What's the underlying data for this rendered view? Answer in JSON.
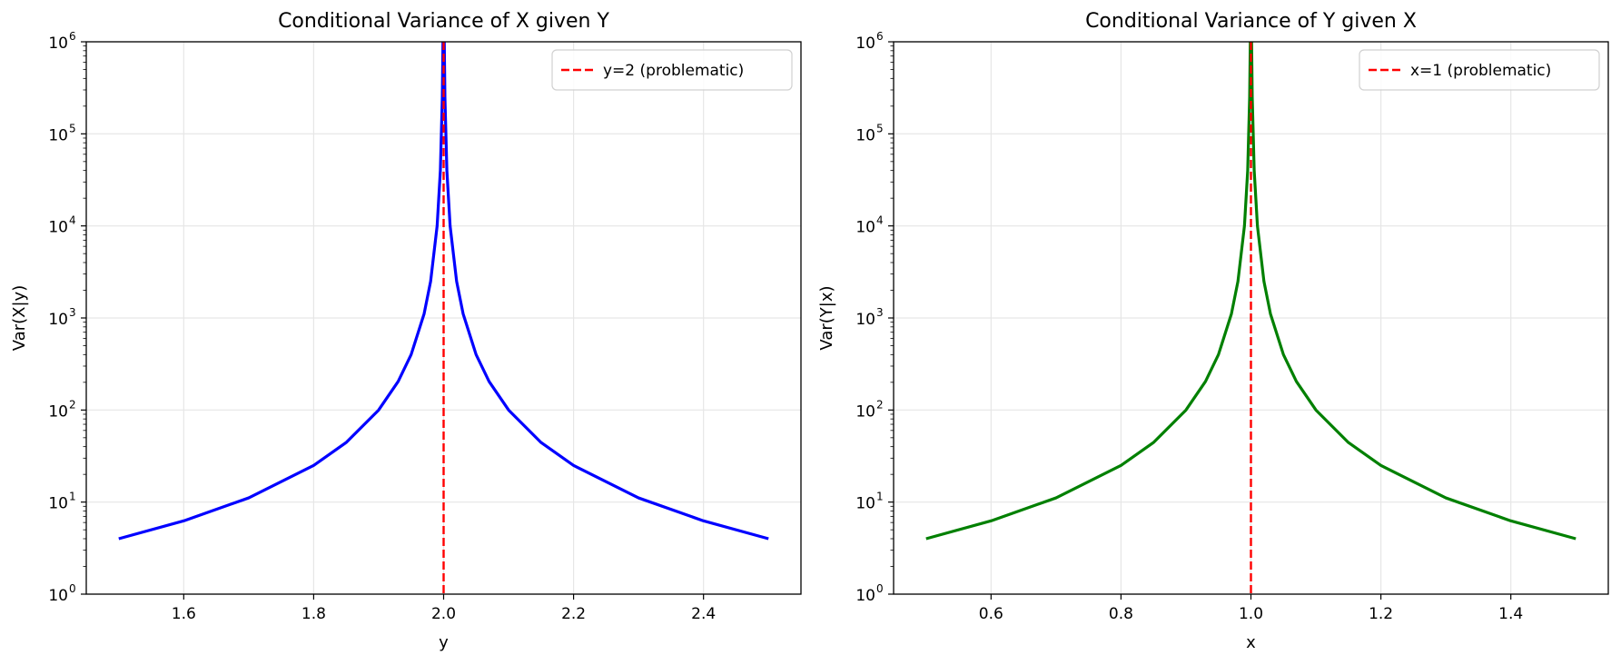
{
  "chart_data": [
    {
      "type": "line",
      "title": "Conditional Variance of X given Y",
      "xlabel": "y",
      "ylabel": "Var(X|y)",
      "xlim": [
        1.45,
        2.55
      ],
      "ylim": [
        1,
        1000000
      ],
      "yscale": "log",
      "grid": true,
      "legend_position": "top-right",
      "x_ticks": [
        "1.6",
        "1.8",
        "2.0",
        "2.2",
        "2.4"
      ],
      "x_tick_values": [
        1.6,
        1.8,
        2.0,
        2.2,
        2.4
      ],
      "y_ticks": [
        {
          "base": "10",
          "exp": "0",
          "value": 1
        },
        {
          "base": "10",
          "exp": "1",
          "value": 10
        },
        {
          "base": "10",
          "exp": "2",
          "value": 100
        },
        {
          "base": "10",
          "exp": "3",
          "value": 1000
        },
        {
          "base": "10",
          "exp": "4",
          "value": 10000
        },
        {
          "base": "10",
          "exp": "5",
          "value": 100000
        },
        {
          "base": "10",
          "exp": "6",
          "value": 1000000
        }
      ],
      "series": [
        {
          "color": "#0000ff",
          "x": [
            1.5,
            1.6,
            1.7,
            1.8,
            1.85,
            1.9,
            1.93,
            1.95,
            1.97,
            1.98,
            1.99,
            1.995,
            1.998,
            1.999,
            2.001,
            2.002,
            2.005,
            2.01,
            2.02,
            2.03,
            2.05,
            2.07,
            2.1,
            2.15,
            2.2,
            2.3,
            2.4,
            2.5
          ],
          "y": [
            4,
            6.25,
            11.1,
            25,
            44.4,
            100,
            204,
            400,
            1111,
            2500,
            10000,
            40000,
            250000,
            1000000,
            1000000,
            250000,
            40000,
            10000,
            2500,
            1111,
            400,
            204,
            100,
            44.4,
            25,
            11.1,
            6.25,
            4
          ]
        }
      ],
      "vline": {
        "x": 2.0,
        "color": "#ff0000",
        "style": "dashed",
        "label": "y=2 (problematic)"
      }
    },
    {
      "type": "line",
      "title": "Conditional Variance of Y given X",
      "xlabel": "x",
      "ylabel": "Var(Y|x)",
      "xlim": [
        0.45,
        1.55
      ],
      "ylim": [
        1,
        1000000
      ],
      "yscale": "log",
      "grid": true,
      "legend_position": "top-right",
      "x_ticks": [
        "0.6",
        "0.8",
        "1.0",
        "1.2",
        "1.4"
      ],
      "x_tick_values": [
        0.6,
        0.8,
        1.0,
        1.2,
        1.4
      ],
      "y_ticks": [
        {
          "base": "10",
          "exp": "0",
          "value": 1
        },
        {
          "base": "10",
          "exp": "1",
          "value": 10
        },
        {
          "base": "10",
          "exp": "2",
          "value": 100
        },
        {
          "base": "10",
          "exp": "3",
          "value": 1000
        },
        {
          "base": "10",
          "exp": "4",
          "value": 10000
        },
        {
          "base": "10",
          "exp": "5",
          "value": 100000
        },
        {
          "base": "10",
          "exp": "6",
          "value": 1000000
        }
      ],
      "series": [
        {
          "color": "#008000",
          "x": [
            0.5,
            0.6,
            0.7,
            0.8,
            0.85,
            0.9,
            0.93,
            0.95,
            0.97,
            0.98,
            0.99,
            0.995,
            0.998,
            0.999,
            1.001,
            1.002,
            1.005,
            1.01,
            1.02,
            1.03,
            1.05,
            1.07,
            1.1,
            1.15,
            1.2,
            1.3,
            1.4,
            1.5
          ],
          "y": [
            4,
            6.25,
            11.1,
            25,
            44.4,
            100,
            204,
            400,
            1111,
            2500,
            10000,
            40000,
            250000,
            1000000,
            1000000,
            250000,
            40000,
            10000,
            2500,
            1111,
            400,
            204,
            100,
            44.4,
            25,
            11.1,
            6.25,
            4
          ]
        }
      ],
      "vline": {
        "x": 1.0,
        "color": "#ff0000",
        "style": "dashed",
        "label": "x=1 (problematic)"
      }
    }
  ]
}
